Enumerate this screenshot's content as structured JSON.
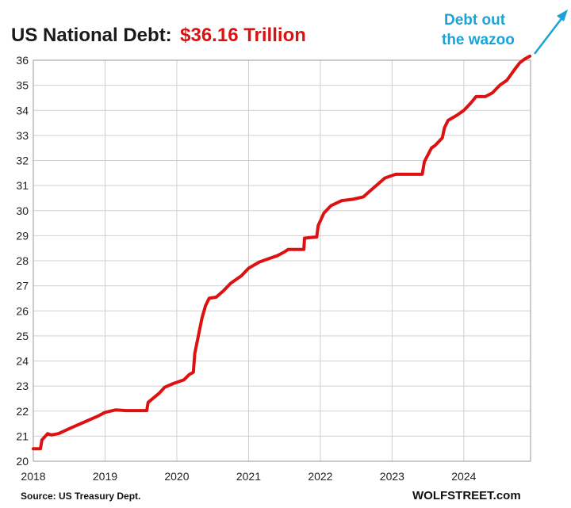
{
  "title": {
    "prefix": "US National Debt:",
    "value": "$36.16 Trillion"
  },
  "annotation": {
    "line1": "Debt out",
    "line2": "the wazoo"
  },
  "source": "Source: US Treasury Dept.",
  "brand": "WOLFSTREET.com",
  "colors": {
    "line": "#dd1111",
    "title_value": "#dd1111",
    "annotation": "#1aa3d6",
    "grid": "#d0d0d0"
  },
  "chart_data": {
    "type": "line",
    "title": "US National Debt: $36.16 Trillion",
    "xlabel": "",
    "ylabel": "",
    "x_ticks": [
      "2018",
      "2019",
      "2020",
      "2021",
      "2022",
      "2023",
      "2024"
    ],
    "y_ticks": [
      20,
      21,
      22,
      23,
      24,
      25,
      26,
      27,
      28,
      29,
      30,
      31,
      32,
      33,
      34,
      35,
      36
    ],
    "xlim": [
      2018.0,
      2024.93
    ],
    "ylim": [
      20,
      36
    ],
    "grid": "vertical and horizontal",
    "series": [
      {
        "values_unit": "trillions of dollars",
        "points": [
          [
            2018.0,
            20.5
          ],
          [
            2018.1,
            20.5
          ],
          [
            2018.12,
            20.85
          ],
          [
            2018.2,
            21.1
          ],
          [
            2018.25,
            21.05
          ],
          [
            2018.35,
            21.1
          ],
          [
            2018.5,
            21.3
          ],
          [
            2018.7,
            21.55
          ],
          [
            2018.9,
            21.8
          ],
          [
            2019.0,
            21.95
          ],
          [
            2019.15,
            22.05
          ],
          [
            2019.3,
            22.02
          ],
          [
            2019.58,
            22.02
          ],
          [
            2019.6,
            22.35
          ],
          [
            2019.75,
            22.7
          ],
          [
            2019.83,
            22.95
          ],
          [
            2019.95,
            23.1
          ],
          [
            2020.1,
            23.25
          ],
          [
            2020.17,
            23.45
          ],
          [
            2020.23,
            23.55
          ],
          [
            2020.25,
            24.3
          ],
          [
            2020.3,
            25.0
          ],
          [
            2020.35,
            25.7
          ],
          [
            2020.4,
            26.2
          ],
          [
            2020.45,
            26.5
          ],
          [
            2020.55,
            26.55
          ],
          [
            2020.65,
            26.8
          ],
          [
            2020.75,
            27.1
          ],
          [
            2020.9,
            27.4
          ],
          [
            2021.0,
            27.7
          ],
          [
            2021.15,
            27.95
          ],
          [
            2021.3,
            28.1
          ],
          [
            2021.4,
            28.2
          ],
          [
            2021.5,
            28.35
          ],
          [
            2021.55,
            28.45
          ],
          [
            2021.77,
            28.45
          ],
          [
            2021.78,
            28.9
          ],
          [
            2021.95,
            28.95
          ],
          [
            2021.97,
            29.4
          ],
          [
            2022.05,
            29.9
          ],
          [
            2022.15,
            30.2
          ],
          [
            2022.3,
            30.4
          ],
          [
            2022.45,
            30.45
          ],
          [
            2022.6,
            30.55
          ],
          [
            2022.7,
            30.8
          ],
          [
            2022.8,
            31.05
          ],
          [
            2022.9,
            31.3
          ],
          [
            2023.0,
            31.4
          ],
          [
            2023.05,
            31.45
          ],
          [
            2023.42,
            31.45
          ],
          [
            2023.45,
            31.95
          ],
          [
            2023.55,
            32.5
          ],
          [
            2023.6,
            32.6
          ],
          [
            2023.7,
            32.9
          ],
          [
            2023.73,
            33.3
          ],
          [
            2023.78,
            33.6
          ],
          [
            2023.9,
            33.8
          ],
          [
            2024.0,
            34.0
          ],
          [
            2024.1,
            34.3
          ],
          [
            2024.17,
            34.55
          ],
          [
            2024.3,
            34.55
          ],
          [
            2024.4,
            34.7
          ],
          [
            2024.5,
            35.0
          ],
          [
            2024.6,
            35.2
          ],
          [
            2024.65,
            35.4
          ],
          [
            2024.7,
            35.6
          ],
          [
            2024.78,
            35.9
          ],
          [
            2024.85,
            36.05
          ],
          [
            2024.92,
            36.16
          ]
        ]
      }
    ]
  }
}
